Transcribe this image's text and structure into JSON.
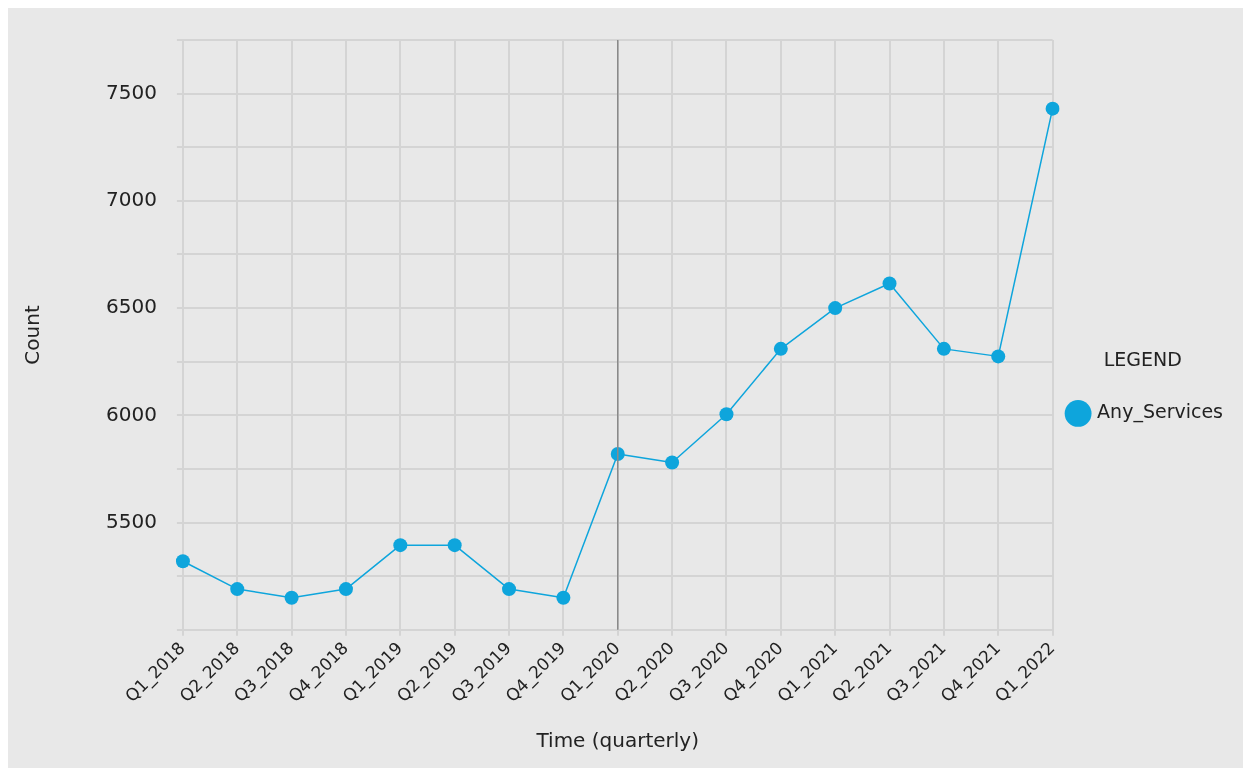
{
  "chart_data": {
    "type": "line",
    "xlabel": "Time (quarterly)",
    "ylabel": "Count",
    "legend_title": "LEGEND",
    "categories": [
      "Q1_2018",
      "Q2_2018",
      "Q3_2018",
      "Q4_2018",
      "Q1_2019",
      "Q2_2019",
      "Q3_2019",
      "Q4_2019",
      "Q1_2020",
      "Q2_2020",
      "Q3_2020",
      "Q4_2020",
      "Q1_2021",
      "Q2_2021",
      "Q3_2021",
      "Q4_2021",
      "Q1_2022"
    ],
    "series": [
      {
        "name": "Any_Services",
        "color": "#0ea5dc",
        "values": [
          5320,
          5190,
          5150,
          5190,
          5395,
          5395,
          5190,
          5150,
          5820,
          5780,
          6005,
          6310,
          6500,
          6615,
          6310,
          6275,
          7430
        ]
      }
    ],
    "ylim": [
      5000,
      7750
    ],
    "yticks": [
      {
        "value": 5000,
        "label": null
      },
      {
        "value": 5250,
        "label": null
      },
      5500,
      {
        "value": 5750,
        "label": null
      },
      6000,
      {
        "value": 6250,
        "label": null
      },
      6500,
      {
        "value": 6750,
        "label": null
      },
      7000,
      {
        "value": 7250,
        "label": null
      },
      7500,
      {
        "value": 7750,
        "label": null
      }
    ],
    "ref_lines": [
      {
        "axis": "x",
        "value": "Q1_2020",
        "color": "#8a8a8a"
      }
    ],
    "grid": true,
    "legend": "right",
    "marker": "circle",
    "line_style": "solid"
  }
}
